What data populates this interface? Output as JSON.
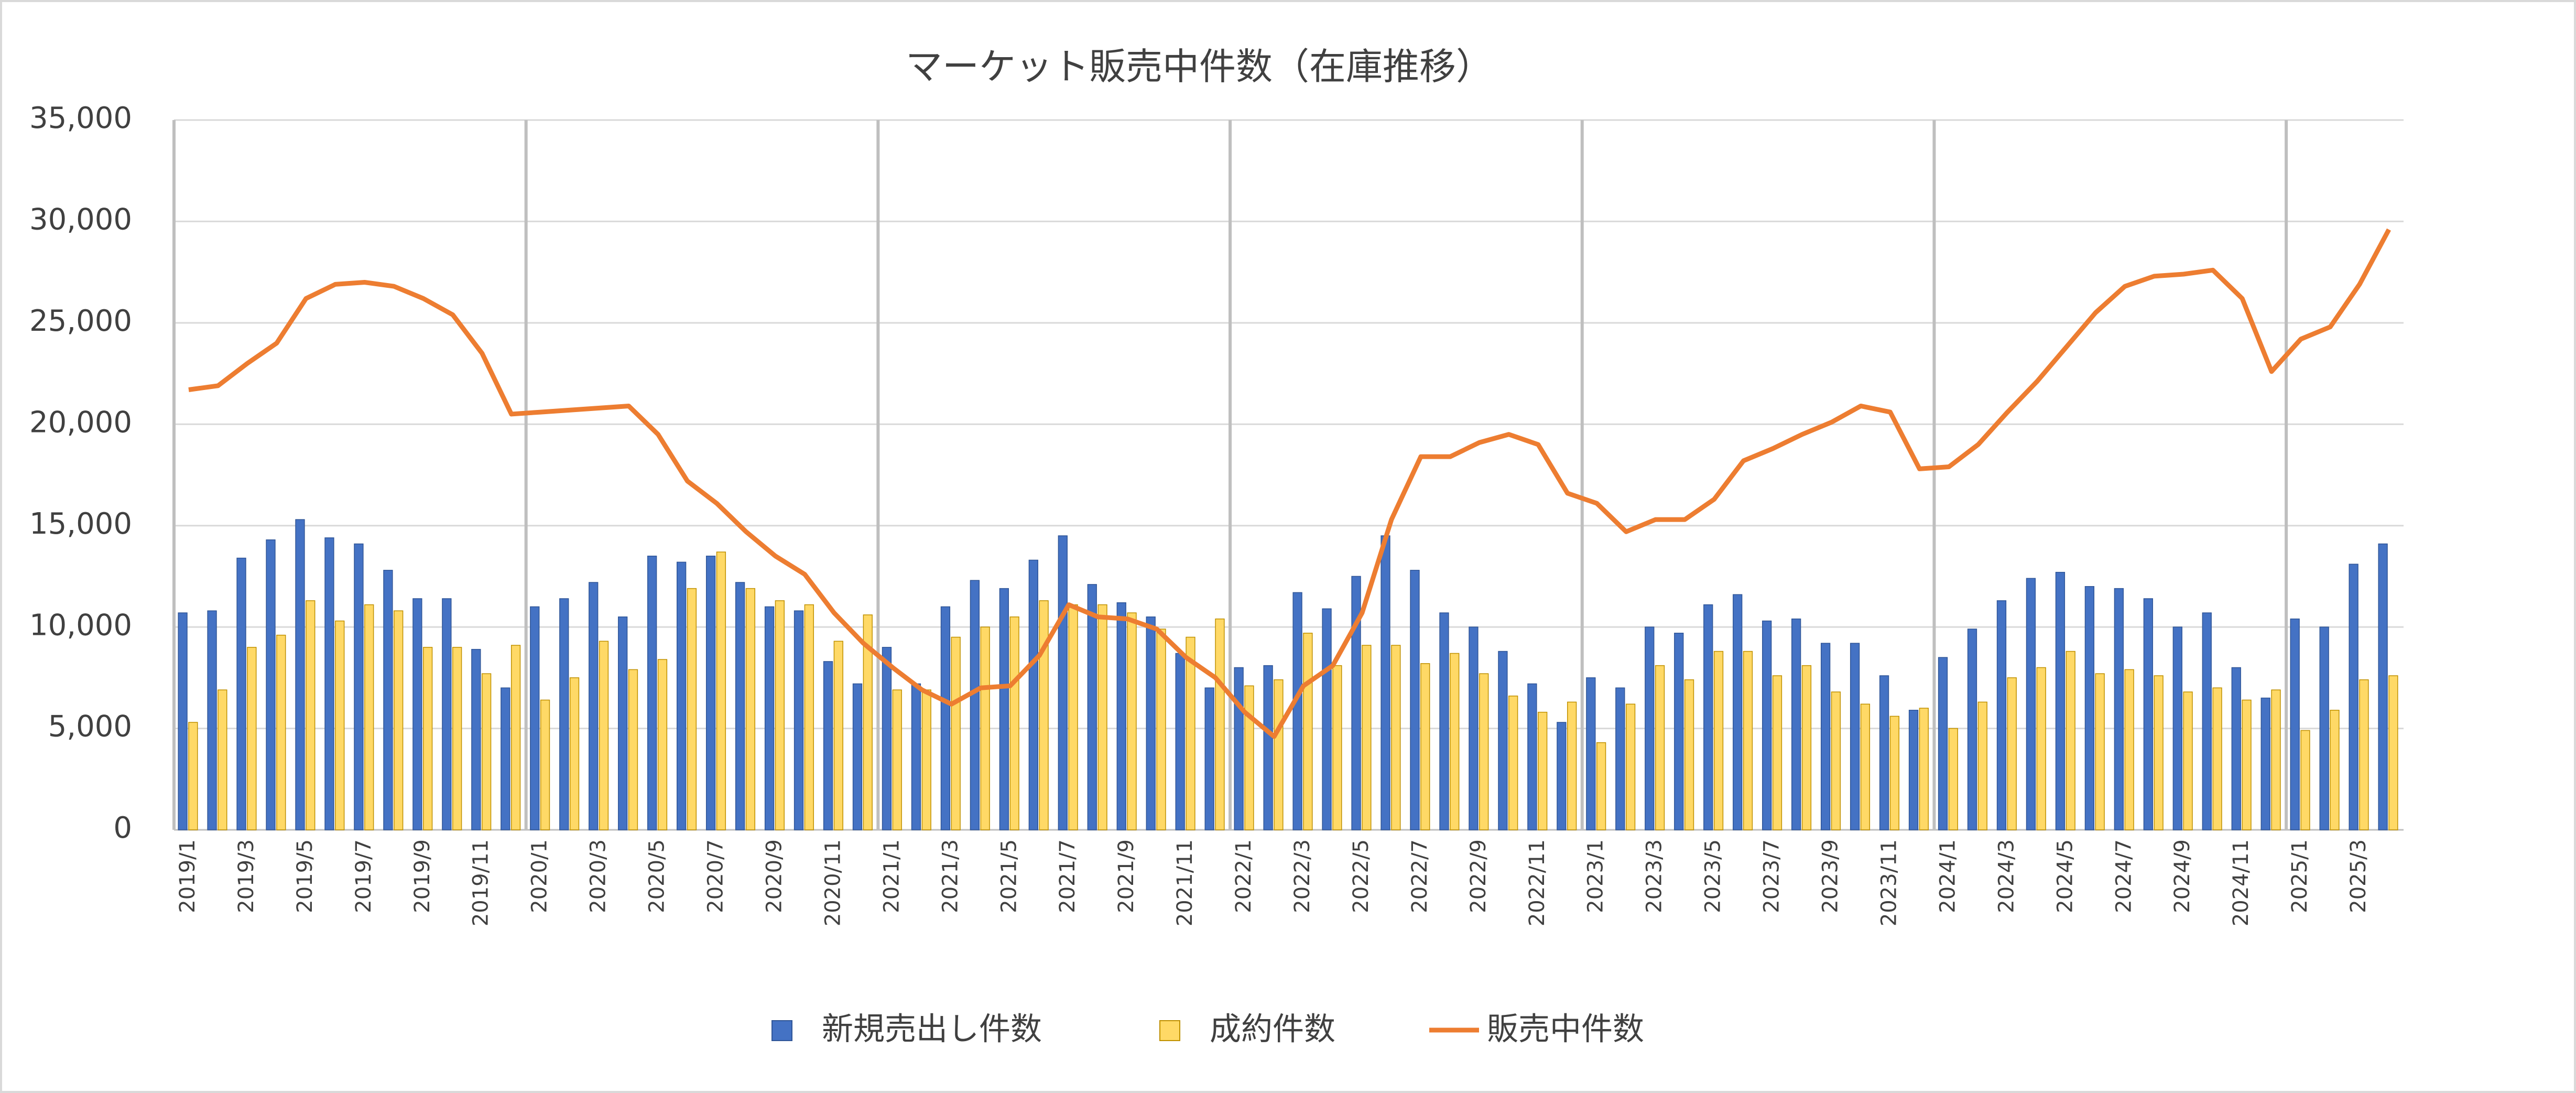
{
  "chart_data": {
    "type": "bar_line",
    "title": "マーケット販売中件数（在庫推移）",
    "categories": [
      "2019/1",
      null,
      "2019/3",
      null,
      "2019/5",
      null,
      "2019/7",
      null,
      "2019/9",
      null,
      "2019/11",
      null,
      "2020/1",
      null,
      "2020/3",
      null,
      "2020/5",
      null,
      "2020/7",
      null,
      "2020/9",
      null,
      "2020/11",
      null,
      "2021/1",
      null,
      "2021/3",
      null,
      "2021/5",
      null,
      "2021/7",
      null,
      "2021/9",
      null,
      "2021/11",
      null,
      "2022/1",
      null,
      "2022/3",
      null,
      "2022/5",
      null,
      "2022/7",
      null,
      "2022/9",
      null,
      "2022/11",
      null,
      "2023/1",
      null,
      "2023/3",
      null,
      "2023/5",
      null,
      "2023/7",
      null,
      "2023/9",
      null,
      "2023/11",
      null,
      "2024/1",
      null,
      "2024/3",
      null,
      "2024/5",
      null,
      "2024/7",
      null,
      "2024/9",
      null,
      "2024/11",
      null,
      "2025/1",
      null,
      "2025/3",
      null
    ],
    "series": [
      {
        "name": "新規売出し件数",
        "type": "bar",
        "color": "#4472c4",
        "values": [
          10700,
          10800,
          13400,
          14300,
          15300,
          14400,
          14100,
          12800,
          11400,
          11400,
          8900,
          7000,
          11000,
          11400,
          12200,
          10500,
          13500,
          13200,
          13500,
          12200,
          11000,
          10800,
          8300,
          7200,
          9000,
          7200,
          11000,
          12300,
          11900,
          13300,
          14500,
          12100,
          11200,
          10500,
          8700,
          7000,
          8000,
          8100,
          11700,
          10900,
          12500,
          14500,
          12800,
          10700,
          10000,
          8800,
          7200,
          5300,
          7500,
          7000,
          10000,
          9700,
          11100,
          11600,
          10300,
          10400,
          9200,
          9200,
          7600,
          5900,
          8500,
          9900,
          11300,
          12400,
          12700,
          12000,
          11900,
          11400,
          10000,
          10700,
          8000,
          6500,
          10400,
          10000,
          13100,
          14100
        ]
      },
      {
        "name": "成約件数",
        "type": "bar",
        "color": "#ffd966",
        "values": [
          5300,
          6900,
          9000,
          9600,
          11300,
          10300,
          11100,
          10800,
          9000,
          9000,
          7700,
          9100,
          6400,
          7500,
          9300,
          7900,
          8400,
          11900,
          13700,
          11900,
          11300,
          11100,
          9300,
          10600,
          6900,
          6900,
          9500,
          10000,
          10500,
          11300,
          11100,
          11100,
          10700,
          9900,
          9500,
          10400,
          7100,
          7400,
          9700,
          8100,
          9100,
          9100,
          8200,
          8700,
          7700,
          6600,
          5800,
          6300,
          4300,
          6200,
          8100,
          7400,
          8800,
          8800,
          7600,
          8100,
          6800,
          6200,
          5600,
          6000,
          5000,
          6300,
          7500,
          8000,
          8800,
          7700,
          7900,
          7600,
          6800,
          7000,
          6400,
          6900,
          4900,
          5900,
          7400,
          7600
        ]
      },
      {
        "name": "販売中件数",
        "type": "line",
        "color": "#ed7d31",
        "values": [
          21700,
          21900,
          23000,
          24000,
          26200,
          26900,
          27000,
          26800,
          26200,
          25400,
          23500,
          20500,
          20600,
          20700,
          20800,
          20900,
          19500,
          17200,
          16100,
          14700,
          13500,
          12600,
          10700,
          9200,
          8000,
          6900,
          6200,
          7000,
          7100,
          8600,
          11100,
          10500,
          10400,
          9900,
          8500,
          7500,
          5800,
          4600,
          7100,
          8100,
          10700,
          15300,
          18400,
          18400,
          19100,
          19500,
          19000,
          16600,
          16100,
          14700,
          15300,
          15300,
          16300,
          18200,
          18800,
          19500,
          20100,
          20900,
          20600,
          17800,
          17900,
          19000,
          20600,
          22100,
          23800,
          25500,
          26800,
          27300,
          27400,
          27600,
          26200,
          22600,
          24200,
          24800,
          26900,
          29600
        ]
      }
    ],
    "ylim": [
      0,
      35000
    ],
    "yticks": [
      0,
      {
        "value": 5000,
        "label": "5,000"
      },
      {
        "value": 10000,
        "label": "10,000"
      },
      {
        "value": 15000,
        "label": "15,000"
      },
      {
        "value": 20000,
        "label": "20,000"
      },
      {
        "value": 25000,
        "label": "25,000"
      },
      {
        "value": 30000,
        "label": "30,000"
      },
      {
        "value": 35000,
        "label": "35,000"
      }
    ],
    "grid": true,
    "legend": "bottom"
  }
}
